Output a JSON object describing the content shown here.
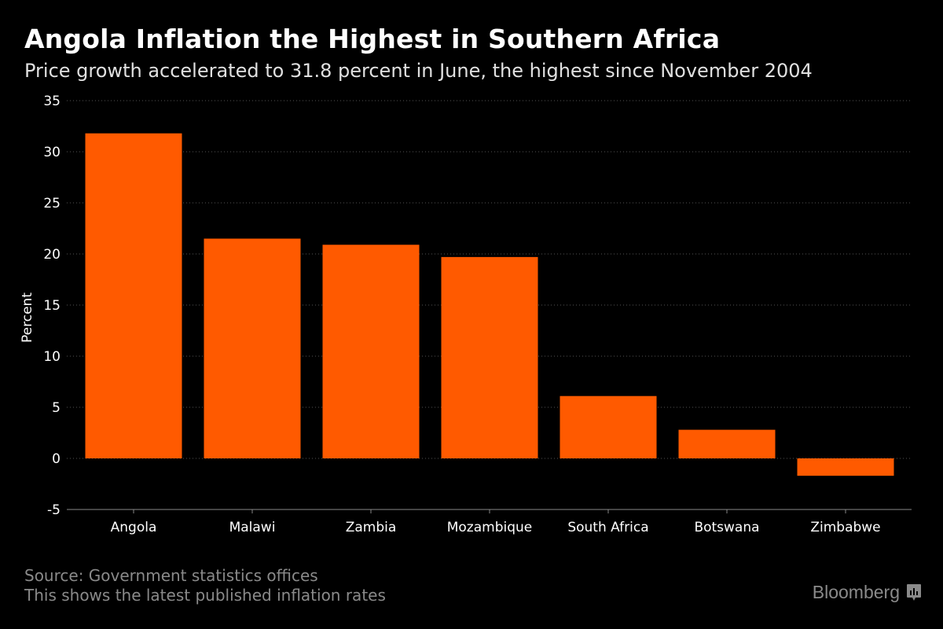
{
  "title": "Angola Inflation the Highest in Southern Africa",
  "subtitle": "Price growth accelerated to 31.8 percent in June, the highest since November 2004",
  "footer": {
    "source": "Source: Government statistics offices",
    "note": "This shows the latest published inflation rates"
  },
  "logo": {
    "text": "Bloomberg",
    "icon": "bloomberg-chart-icon"
  },
  "colors": {
    "bar": "#ff5a00",
    "background": "#000000",
    "grid": "#555555"
  },
  "chart_data": {
    "type": "bar",
    "title": "Angola Inflation the Highest in Southern Africa",
    "subtitle": "Price growth accelerated to 31.8 percent in June, the highest since November 2004",
    "xlabel": "",
    "ylabel": "Percent",
    "ylim": [
      -5,
      35
    ],
    "yticks": [
      35,
      30,
      25,
      20,
      15,
      10,
      5,
      0,
      -5
    ],
    "grid": true,
    "categories": [
      "Angola",
      "Malawi",
      "Zambia",
      "Mozambique",
      "South Africa",
      "Botswana",
      "Zimbabwe"
    ],
    "values": [
      31.8,
      21.5,
      20.9,
      19.7,
      6.1,
      2.8,
      -1.7
    ]
  }
}
